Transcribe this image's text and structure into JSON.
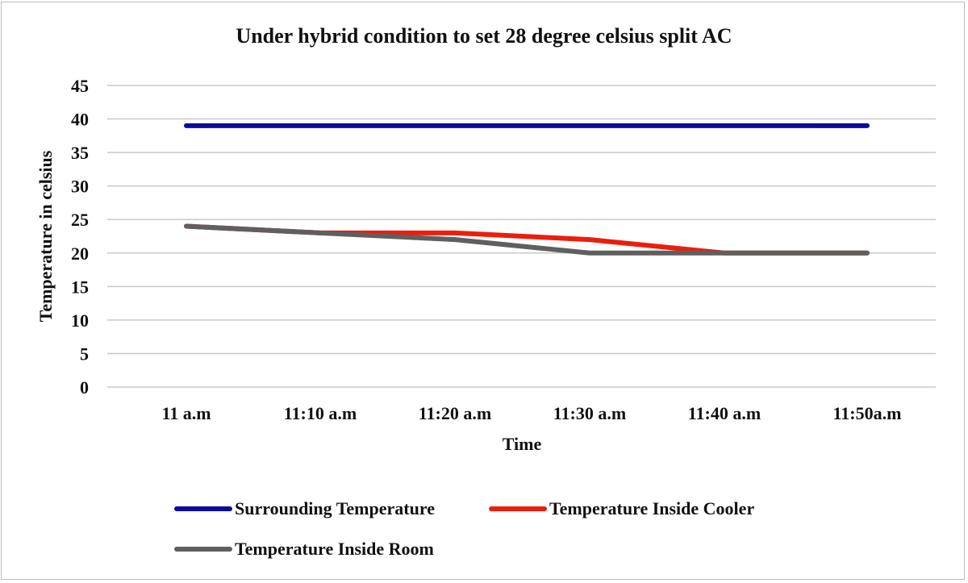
{
  "chart_data": {
    "type": "line",
    "title": "Under hybrid condition to set 28 degree celsius split AC",
    "xlabel": "Time",
    "ylabel": "Temperature in celsius",
    "categories": [
      "11 a.m",
      "11:10 a.m",
      "11:20 a.m",
      "11:30 a.m",
      "11:40 a.m",
      "11:50a.m"
    ],
    "yticks": [
      "0",
      "5",
      "10",
      "15",
      "20",
      "25",
      "30",
      "35",
      "40",
      "45"
    ],
    "ylim": [
      0,
      45
    ],
    "grid": true,
    "legend_position": "bottom",
    "series": [
      {
        "name": "Surrounding Temperature",
        "color": "#0b0b9e",
        "values": [
          39,
          39,
          39,
          39,
          39,
          39
        ]
      },
      {
        "name": "Temperature Inside Cooler",
        "color": "#ee1c0c",
        "values": [
          24,
          23,
          23,
          22,
          20,
          20
        ]
      },
      {
        "name": "Temperature Inside Room",
        "color": "#5f5f5f",
        "values": [
          24,
          23,
          22,
          20,
          20,
          20
        ]
      }
    ]
  }
}
